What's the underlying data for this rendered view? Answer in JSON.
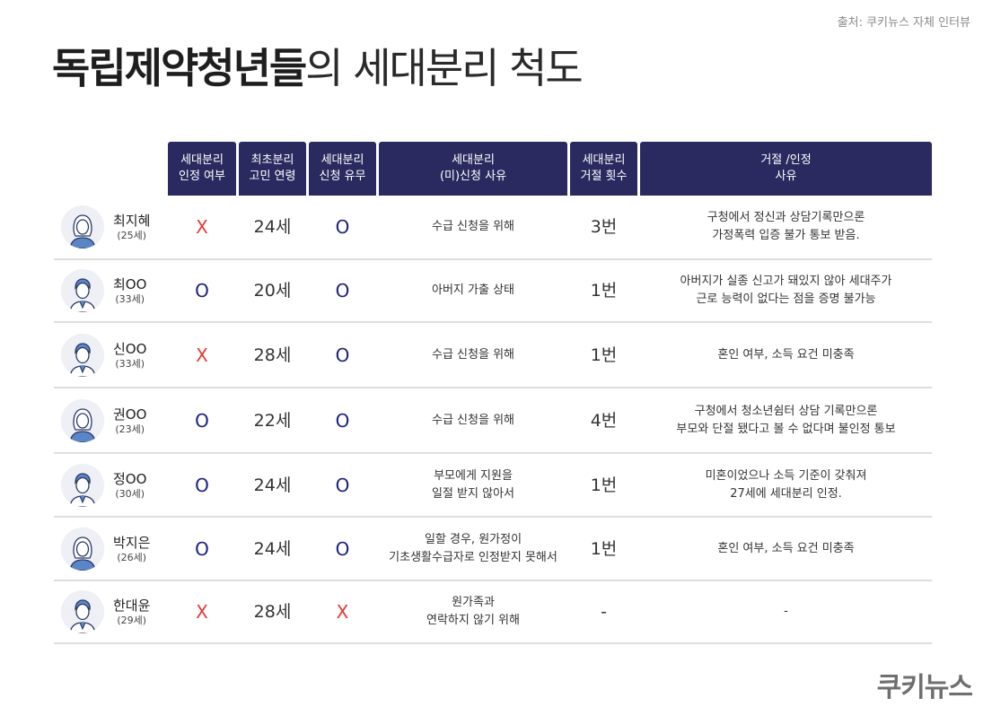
{
  "source": "출처: 쿠키뉴스 자체 인터뷰",
  "title": {
    "bold": "독립제약청년들",
    "light": "의 세대분리 척도"
  },
  "headers": {
    "h1": "세대분리\n인정 여부",
    "h2": "최초분리\n고민 연령",
    "h3": "세대분리\n신청 유무",
    "h4": "세대분리\n(미)신청 사유",
    "h5": "세대분리\n거절 횟수",
    "h6": "거절 /인정\n사유"
  },
  "rows": [
    {
      "name": "최지혜",
      "age": "(25세)",
      "recognized": "X",
      "age_first": "24세",
      "applied": "O",
      "reason": "수급 신청을 위해",
      "rejections": "3번",
      "detail": "구청에서 정신과 상담기록만으론\n가정폭력 입증 불가 통보 받음.",
      "avatar": "woman-avatar-icon"
    },
    {
      "name": "최OO",
      "age": "(33세)",
      "recognized": "O",
      "age_first": "20세",
      "applied": "O",
      "reason": "아버지 가출 상태",
      "rejections": "1번",
      "detail": "아버지가 실종 신고가 돼있지 않아 세대주가\n근로 능력이 없다는 점을 증명 불가능",
      "avatar": "man-avatar-icon"
    },
    {
      "name": "신OO",
      "age": "(33세)",
      "recognized": "X",
      "age_first": "28세",
      "applied": "O",
      "reason": "수급 신청을 위해",
      "rejections": "1번",
      "detail": "혼인 여부, 소득 요건 미충족",
      "avatar": "man-avatar-icon"
    },
    {
      "name": "권OO",
      "age": "(23세)",
      "recognized": "O",
      "age_first": "22세",
      "applied": "O",
      "reason": "수급 신청을 위해",
      "rejections": "4번",
      "detail": "구청에서 청소년쉼터 상담 기록만으론\n부모와 단절 됐다고 볼 수 없다며 불인정 통보",
      "avatar": "woman-avatar-icon"
    },
    {
      "name": "정OO",
      "age": "(30세)",
      "recognized": "O",
      "age_first": "24세",
      "applied": "O",
      "reason": "부모에게 지원을\n일절 받지 않아서",
      "rejections": "1번",
      "detail": "미혼이었으나 소득 기준이 갖춰져\n27세에 세대분리 인정.",
      "avatar": "man-avatar-icon"
    },
    {
      "name": "박지은",
      "age": "(26세)",
      "recognized": "O",
      "age_first": "24세",
      "applied": "O",
      "reason": "일할 경우, 원가정이\n기초생활수급자로 인정받지 못해서",
      "rejections": "1번",
      "detail": "혼인 여부, 소득 요건 미충족",
      "avatar": "woman-avatar-icon"
    },
    {
      "name": "한대윤",
      "age": "(29세)",
      "recognized": "X",
      "age_first": "28세",
      "applied": "X",
      "reason": "원가족과\n연락하지 않기 위해",
      "rejections": "-",
      "detail": "-",
      "avatar": "man-avatar-icon"
    }
  ],
  "logo": "쿠키뉴스",
  "colors": {
    "header_bg": "#2b2a60",
    "x_mark": "#e53935",
    "o_mark": "#1a237e"
  }
}
